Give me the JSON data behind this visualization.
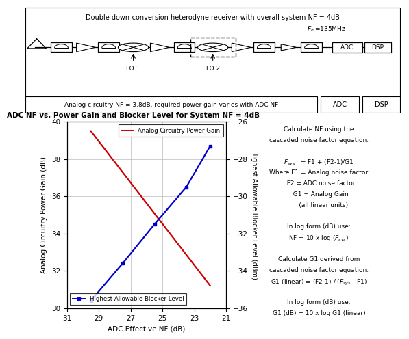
{
  "title_chart": "ADC NF vs. Power Gain and Blocker Level for System NF = 4dB",
  "xlabel": "ADC Effective NF (dB)",
  "ylabel_left": "Analog Circuitry Power Gain (dB)",
  "ylabel_right": "Highest Allowable Blocker Level (dBm)",
  "xlim": [
    31,
    21
  ],
  "ylim_left": [
    30,
    40
  ],
  "ylim_right": [
    -36,
    -26
  ],
  "xticks": [
    31,
    29,
    27,
    25,
    23,
    21
  ],
  "yticks_left": [
    30,
    32,
    34,
    36,
    38,
    40
  ],
  "yticks_right": [
    -36,
    -34,
    -32,
    -30,
    -28,
    -26
  ],
  "red_line_x": [
    29.5,
    22.0
  ],
  "red_line_y": [
    39.5,
    31.2
  ],
  "blue_line_x": [
    29.5,
    27.5,
    25.5,
    23.5,
    22.0
  ],
  "blue_line_y": [
    30.4,
    32.4,
    34.5,
    36.5,
    38.7
  ],
  "red_label": "Analog Circuitry Power Gain",
  "blue_label": "Highest Allowable Blocker Level",
  "red_color": "#cc0000",
  "blue_color": "#0000cc",
  "grid_color": "#bbbbbb",
  "bg_color": "#ffffff",
  "header_text": "Double down-conversion heterodyne receiver with overall system NF = 4dB",
  "bottom_text": "Analog circuitry NF = 3.8dB, required power gain varies with ADC NF",
  "right_annotations": [
    "Calculate NF using the",
    "cascaded noise factor equation:",
    "",
    "F_sys  = F1 + (F2-1)/G1",
    "Where F1 = Analog noise factor",
    "  F2 = ADC noise factor",
    "  G1 = Analog Gain",
    "     (all linear units)",
    "",
    "In log form (dB) use:",
    "NF = 10 x log (F_sys)",
    "",
    "Calculate G1 derived from",
    "cascaded noise factor equation:",
    "G1 (linear) = (F2-1) / (F_sys - F1)",
    "",
    "In log form (dB) use:",
    "G1 (dB) = 10 x log G1 (linear)"
  ]
}
